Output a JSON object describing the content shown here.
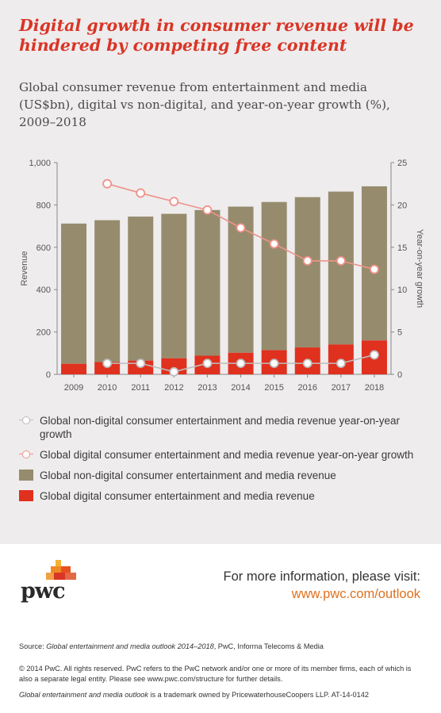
{
  "headline": "Digital growth in consumer revenue will be hindered by competing free content",
  "subtitle": "Global consumer revenue from entertainment and media (US$bn), digital vs non-digital, and year-on-year growth (%), 2009–2018",
  "chart_data": {
    "type": "bar",
    "stacked": true,
    "categories": [
      "2009",
      "2010",
      "2011",
      "2012",
      "2013",
      "2014",
      "2015",
      "2016",
      "2017",
      "2018"
    ],
    "ylabel": "Revenue",
    "ylim": [
      0,
      1000
    ],
    "yticks": [
      "0",
      "200",
      "400",
      "600",
      "800",
      "1,000"
    ],
    "y2label": "Year-on-year growth",
    "y2lim": [
      0,
      25
    ],
    "y2ticks": [
      "0",
      "5",
      "10",
      "15",
      "20",
      "25"
    ],
    "series": [
      {
        "name": "Global digital consumer entertainment and media revenue",
        "kind": "bar",
        "values": [
          50,
          58,
          65,
          76,
          88,
          102,
          114,
          127,
          141,
          160
        ]
      },
      {
        "name": "Global non-digital consumer entertainment and media revenue",
        "kind": "bar",
        "values": [
          662,
          670,
          680,
          682,
          688,
          690,
          700,
          710,
          722,
          728
        ]
      },
      {
        "name": "Global non-digital consumer entertainment and media revenue year-on-year growth",
        "kind": "line",
        "axis": "right",
        "values": [
          null,
          1.3,
          1.3,
          0.3,
          1.3,
          1.3,
          1.3,
          1.3,
          1.3,
          2.3
        ]
      },
      {
        "name": "Global digital consumer entertainment and media revenue year-on-year growth",
        "kind": "line",
        "axis": "right",
        "values": [
          null,
          22.5,
          21.4,
          20.4,
          19.4,
          17.3,
          15.4,
          13.4,
          13.4,
          12.4
        ]
      }
    ],
    "colors": {
      "digital": "#e0301e",
      "non_digital": "#968c6d",
      "digital_growth": "#f0928a",
      "non_digital_growth": "#bdbdbd",
      "axis": "#888888",
      "text": "#555555"
    },
    "grid": false,
    "legend": "bottom"
  },
  "legend_items": [
    {
      "label": "Global non-digital consumer entertainment and media revenue year-on-year growth",
      "kind": "line",
      "color": "#bdbdbd"
    },
    {
      "label": "Global digital consumer entertainment and media revenue year-on-year growth",
      "kind": "line",
      "color": "#f0928a"
    },
    {
      "label": "Global non-digital consumer entertainment and media revenue",
      "kind": "bar",
      "color": "#968c6d"
    },
    {
      "label": "Global digital consumer entertainment and media revenue",
      "kind": "bar",
      "color": "#e0301e"
    }
  ],
  "footer": {
    "logo_text": "pwc",
    "info_text": "For more information, please visit:",
    "url": "www.pwc.com/outlook",
    "source_prefix": "Source: ",
    "source_title": "Global entertainment and media outlook 2014–2018",
    "source_suffix": ", PwC, Informa Telecoms & Media",
    "copyright": "© 2014 PwC. All rights reserved. PwC refers to the PwC network and/or one or more of its member firms, each of which is also a separate legal entity. Please see www.pwc.com/structure for further details.",
    "trademark_title": "Global entertainment and media outlook",
    "trademark_suffix": " is a trademark owned by PricewaterhouseCoopers LLP. AT-14-0142"
  }
}
